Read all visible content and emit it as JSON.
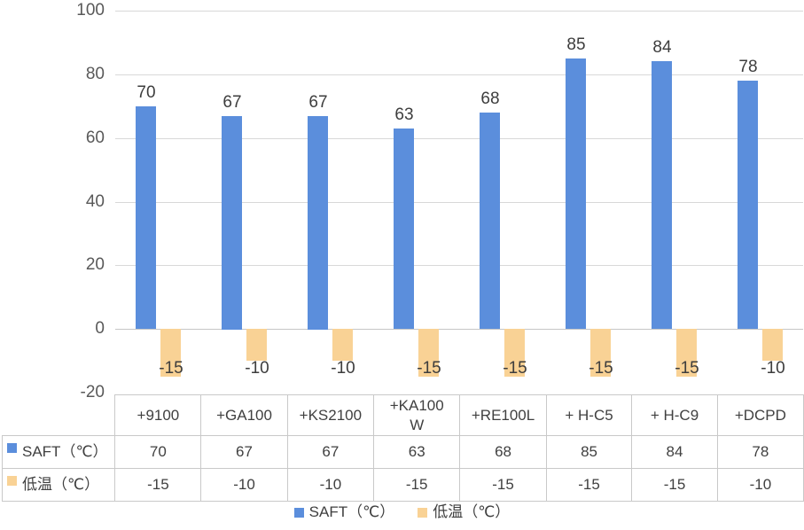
{
  "chart_data": {
    "type": "bar",
    "categories": [
      "+9100",
      "+GA100",
      "+KS2100",
      "+KA100W",
      "+RE100L",
      "+ H-C5",
      "+ H-C9",
      "+DCPD"
    ],
    "series": [
      {
        "name": "SAFT（℃）",
        "color": "#5b8edc",
        "values": [
          70,
          67,
          67,
          63,
          68,
          85,
          84,
          78
        ]
      },
      {
        "name": "低温（℃）",
        "color": "#f9d295",
        "values": [
          -15,
          -10,
          -10,
          -15,
          -15,
          -15,
          -15,
          -10
        ]
      }
    ],
    "title": "",
    "xlabel": "",
    "ylabel": "",
    "ylim": [
      -20,
      100
    ],
    "ytick_step": 20,
    "ytick_labels": [
      "-20",
      "0",
      "20",
      "40",
      "60",
      "80",
      "100"
    ],
    "grid": true,
    "legend_position": "bottom",
    "data_labels": true,
    "data_table_shown": true
  },
  "table": {
    "column_headers": [
      "+9100",
      "+GA100",
      "+KS2100",
      "+KA100\nW",
      "+RE100L",
      "+ H-C5",
      "+ H-C9",
      "+DCPD"
    ],
    "rows": [
      {
        "label": "SAFT（℃）",
        "key_color": "#5b8edc",
        "values": [
          "70",
          "67",
          "67",
          "63",
          "68",
          "85",
          "84",
          "78"
        ]
      },
      {
        "label": "低温（℃）",
        "key_color": "#f9d295",
        "values": [
          "-15",
          "-10",
          "-10",
          "-15",
          "-15",
          "-15",
          "-15",
          "-10"
        ]
      }
    ]
  },
  "legend": {
    "items": [
      {
        "label": "SAFT（℃）",
        "color": "#5b8edc"
      },
      {
        "label": "低温（℃）",
        "color": "#f9d295"
      }
    ]
  },
  "colors": {
    "series_blue": "#5b8edc",
    "series_orange": "#f9d295",
    "gridline": "#d8d8d8",
    "zero_line": "#c6c6c6",
    "axis_text": "#595959",
    "table_text": "#404040",
    "table_border": "#c9c9c9",
    "background": "#ffffff"
  }
}
